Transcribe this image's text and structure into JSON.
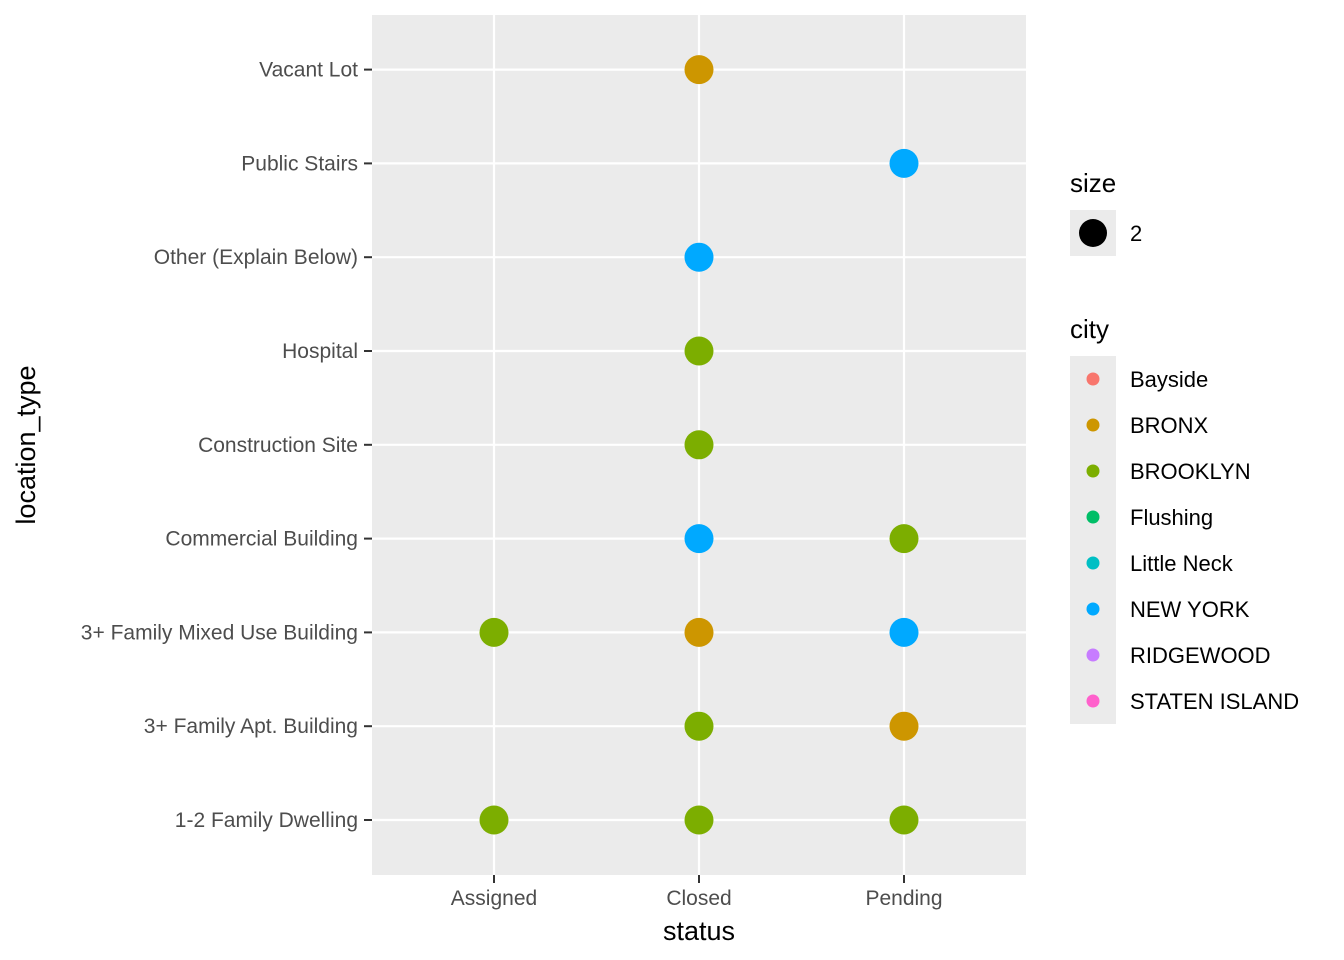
{
  "chart_data": {
    "type": "scatter",
    "xlabel": "status",
    "ylabel": "location_type",
    "x_categories": [
      "Assigned",
      "Closed",
      "Pending"
    ],
    "y_categories": [
      "1-2 Family Dwelling",
      "3+ Family Apt. Building",
      "3+ Family Mixed Use Building",
      "Commercial Building",
      "Construction Site",
      "Hospital",
      "Other (Explain Below)",
      "Public Stairs",
      "Vacant Lot"
    ],
    "grid": true,
    "legend_position": "right",
    "legends": {
      "size": {
        "title": "size",
        "entries": [
          {
            "label": "2"
          }
        ]
      },
      "city": {
        "title": "city",
        "entries": [
          {
            "label": "Bayside",
            "color": "#F8766D"
          },
          {
            "label": "BRONX",
            "color": "#CD9600"
          },
          {
            "label": "BROOKLYN",
            "color": "#7CAE00"
          },
          {
            "label": "Flushing",
            "color": "#00BE67"
          },
          {
            "label": "Little Neck",
            "color": "#00BFC4"
          },
          {
            "label": "NEW YORK",
            "color": "#00A9FF"
          },
          {
            "label": "RIDGEWOOD",
            "color": "#C77CFF"
          },
          {
            "label": "STATEN ISLAND",
            "color": "#FF61CC"
          }
        ]
      }
    },
    "points": [
      {
        "x": "Closed",
        "y": "Vacant Lot",
        "city": "BRONX",
        "size": 2
      },
      {
        "x": "Pending",
        "y": "Public Stairs",
        "city": "NEW YORK",
        "size": 2
      },
      {
        "x": "Closed",
        "y": "Other (Explain Below)",
        "city": "NEW YORK",
        "size": 2
      },
      {
        "x": "Closed",
        "y": "Hospital",
        "city": "BROOKLYN",
        "size": 2
      },
      {
        "x": "Closed",
        "y": "Construction Site",
        "city": "BROOKLYN",
        "size": 2
      },
      {
        "x": "Closed",
        "y": "Commercial Building",
        "city": "NEW YORK",
        "size": 2
      },
      {
        "x": "Pending",
        "y": "Commercial Building",
        "city": "BROOKLYN",
        "size": 2
      },
      {
        "x": "Assigned",
        "y": "3+ Family Mixed Use Building",
        "city": "BROOKLYN",
        "size": 2
      },
      {
        "x": "Closed",
        "y": "3+ Family Mixed Use Building",
        "city": "BRONX",
        "size": 2
      },
      {
        "x": "Pending",
        "y": "3+ Family Mixed Use Building",
        "city": "NEW YORK",
        "size": 2
      },
      {
        "x": "Closed",
        "y": "3+ Family Apt. Building",
        "city": "BROOKLYN",
        "size": 2
      },
      {
        "x": "Pending",
        "y": "3+ Family Apt. Building",
        "city": "BRONX",
        "size": 2
      },
      {
        "x": "Assigned",
        "y": "1-2 Family Dwelling",
        "city": "BROOKLYN",
        "size": 2
      },
      {
        "x": "Closed",
        "y": "1-2 Family Dwelling",
        "city": "BROOKLYN",
        "size": 2
      },
      {
        "x": "Pending",
        "y": "1-2 Family Dwelling",
        "city": "BROOKLYN",
        "size": 2
      }
    ]
  }
}
